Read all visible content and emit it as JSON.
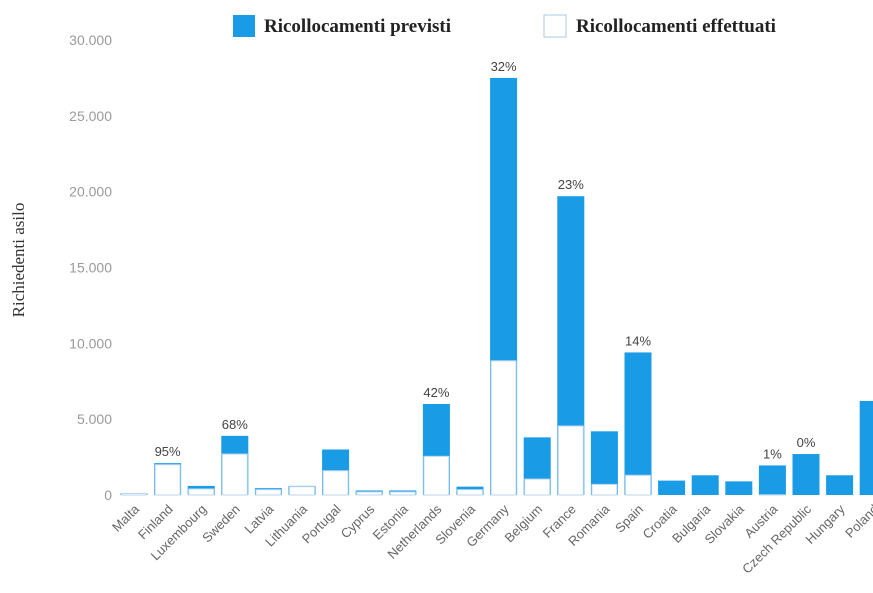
{
  "chart_data": {
    "type": "bar",
    "ylabel": "Richiedenti asilo",
    "ylim": [
      0,
      30000
    ],
    "yticks": [
      "0",
      "5.000",
      "10.000",
      "15.000",
      "20.000",
      "25.000",
      "30.000"
    ],
    "legend_position": "top",
    "categories": [
      "Malta",
      "Finland",
      "Luxembourg",
      "Sweden",
      "Latvia",
      "Lithuania",
      "Portugal",
      "Cyprus",
      "Estonia",
      "Netherlands",
      "Slovenia",
      "Germany",
      "Belgium",
      "France",
      "Romania",
      "Spain",
      "Croatia",
      "Bulgaria",
      "Slovakia",
      "Austria",
      "Czech Republic",
      "Hungary",
      "Poland"
    ],
    "series": [
      {
        "name": "Ricollocamenti previsti",
        "color": "#1a9be6",
        "values": [
          100,
          2100,
          600,
          3900,
          450,
          600,
          3000,
          300,
          300,
          6000,
          550,
          27500,
          3800,
          19700,
          4200,
          9400,
          950,
          1300,
          900,
          1950,
          2700,
          1300,
          6200
        ]
      },
      {
        "name": "Ricollocamenti effettuati",
        "color": "#ffffff",
        "values": [
          100,
          2000,
          400,
          2700,
          350,
          550,
          1600,
          200,
          200,
          2550,
          350,
          8850,
          1050,
          4550,
          700,
          1300,
          0,
          0,
          0,
          15,
          0,
          0,
          0
        ]
      }
    ],
    "annotations": [
      {
        "category": "Finland",
        "text": "95%"
      },
      {
        "category": "Sweden",
        "text": "68%"
      },
      {
        "category": "Netherlands",
        "text": "42%"
      },
      {
        "category": "Germany",
        "text": "32%"
      },
      {
        "category": "France",
        "text": "23%"
      },
      {
        "category": "Spain",
        "text": "14%"
      },
      {
        "category": "Austria",
        "text": "1%"
      },
      {
        "category": "Czech Republic",
        "text": "0%"
      }
    ]
  }
}
